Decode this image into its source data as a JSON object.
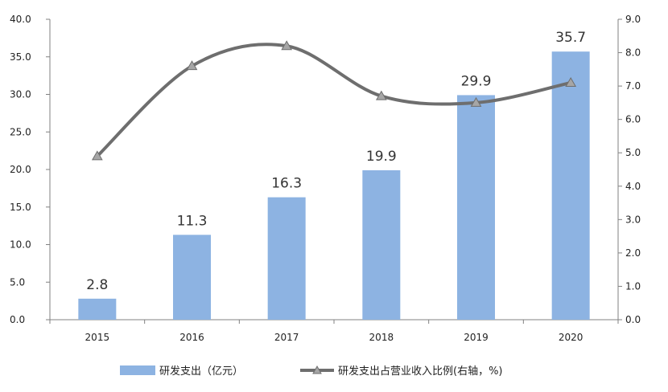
{
  "chart_data": {
    "type": "bar+line",
    "categories": [
      "2015",
      "2016",
      "2017",
      "2018",
      "2019",
      "2020"
    ],
    "bar_series": {
      "name": "研发支出（亿元）",
      "values": [
        2.8,
        11.3,
        16.3,
        19.9,
        29.9,
        35.7
      ],
      "data_labels": [
        "2.8",
        "11.3",
        "16.3",
        "19.9",
        "29.9",
        "35.7"
      ],
      "color": "#8db3e2"
    },
    "line_series": {
      "name": "研发支出占营业收入比例(右轴，%)",
      "values": [
        4.9,
        7.6,
        8.2,
        6.7,
        6.5,
        7.1
      ],
      "color": "#6e6e6e",
      "marker": "triangle"
    },
    "y_left": {
      "ylim": [
        0,
        40
      ],
      "ticks": [
        "0.0",
        "5.0",
        "10.0",
        "15.0",
        "20.0",
        "25.0",
        "30.0",
        "35.0",
        "40.0"
      ]
    },
    "y_right": {
      "ylim": [
        0,
        9
      ],
      "ticks": [
        "0.0",
        "1.0",
        "2.0",
        "3.0",
        "4.0",
        "5.0",
        "6.0",
        "7.0",
        "8.0",
        "9.0"
      ]
    },
    "grid": false,
    "legend_position": "bottom"
  }
}
